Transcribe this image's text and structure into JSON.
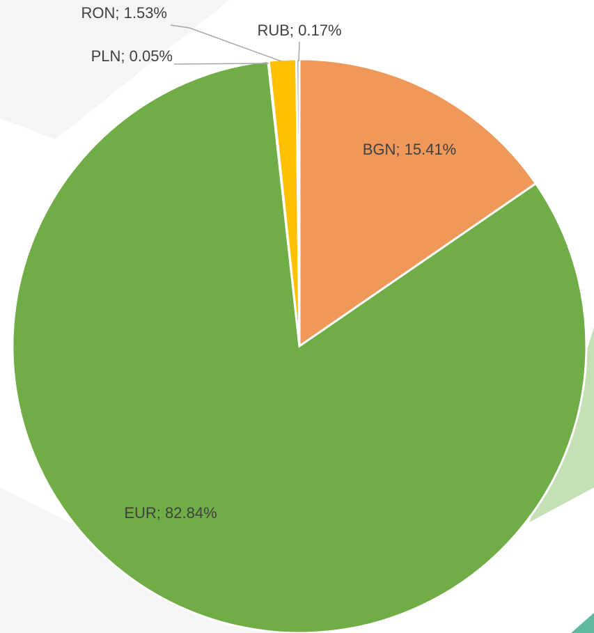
{
  "chart_data": {
    "type": "pie",
    "values": [
      15.41,
      82.84,
      0.05,
      1.53,
      0.17
    ],
    "value_labels": [
      "BGN; 15.41%",
      "EUR; 82.84%",
      "PLN; 0.05%",
      "RON; 1.53%",
      "RUB; 0.17%"
    ],
    "colors": [
      "#f0975a",
      "#70ad47",
      "#5b9bd5",
      "#ffc000",
      "#a5a5a5"
    ]
  }
}
